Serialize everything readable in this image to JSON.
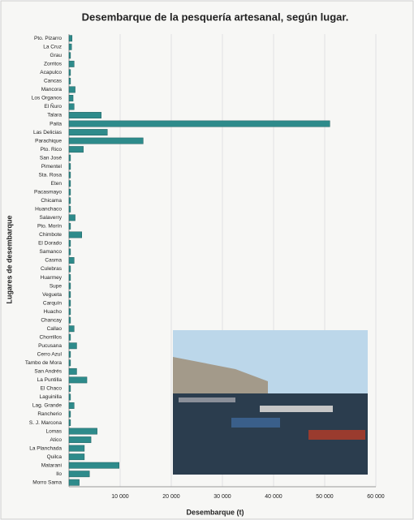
{
  "chart_data": {
    "type": "barh",
    "title": "Desembarque de la pesquería artesanal, según lugar.",
    "x_label": "Desembarque (t)",
    "y_label": "Lugares de desembarque",
    "color": "#2e8b8b",
    "grid": true,
    "categories": [
      "Pto. Pizarro",
      "La Cruz",
      "Grau",
      "Zorritos",
      "Acapulco",
      "Cancas",
      "Mancora",
      "Los Organos",
      "El Ñuro",
      "Talara",
      "Paita",
      "Las Delicias",
      "Parachique",
      "Pto. Rico",
      "San José",
      "Pimentel",
      "Sta. Rosa",
      "Eten",
      "Pacasmayo",
      "Chicama",
      "Huanchaco",
      "Salaverry",
      "Pto. Morín",
      "Chimbote",
      "El Dorado",
      "Samanco",
      "Casma",
      "Culebras",
      "Huarmey",
      "Supe",
      "Vegueta",
      "Carquín",
      "Huacho",
      "Chancay",
      "Callao",
      "Chorrillos",
      "Pucusana",
      "Cerro Azul",
      "Tambo de Mora",
      "San Andrés",
      "La Puntilla",
      "El Chaco",
      "Laguinilla",
      "Lag. Grande",
      "Rancherio",
      "S. J. Marcona",
      "Lomas",
      "Atico",
      "La Planchada",
      "Quilca",
      "Matarani",
      "Ilo",
      "Morro Sama"
    ],
    "values": [
      600,
      500,
      300,
      1000,
      300,
      300,
      1200,
      800,
      1000,
      6300,
      51000,
      7500,
      14500,
      2800,
      300,
      300,
      300,
      300,
      300,
      300,
      300,
      1200,
      300,
      2500,
      300,
      300,
      1000,
      300,
      300,
      300,
      300,
      300,
      300,
      300,
      1000,
      300,
      1500,
      300,
      300,
      1500,
      3500,
      300,
      300,
      1000,
      300,
      300,
      5500,
      4300,
      3000,
      3000,
      9800,
      4000,
      2000
    ],
    "xlim": [
      0,
      60000
    ],
    "xticks": [
      {
        "value": 10000,
        "label": "10 000"
      },
      {
        "value": 20000,
        "label": "20 000"
      },
      {
        "value": 30000,
        "label": "30 000"
      },
      {
        "value": 40000,
        "label": "40 000"
      },
      {
        "value": 50000,
        "label": "50 000"
      },
      {
        "value": 60000,
        "label": "60 000"
      }
    ]
  }
}
